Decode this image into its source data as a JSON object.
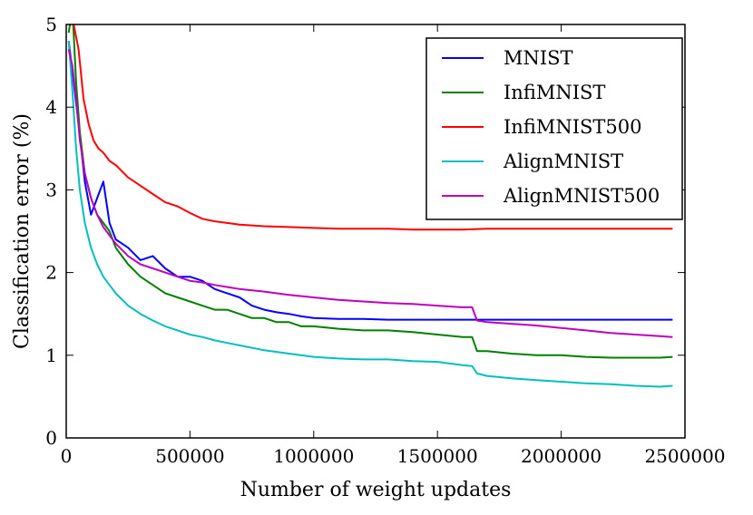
{
  "chart_data": {
    "type": "line",
    "title": "",
    "xlabel": "Number of weight updates",
    "ylabel": "Classification error (%)",
    "xlim": [
      0,
      2500000
    ],
    "ylim": [
      0,
      5
    ],
    "xticks": [
      0,
      500000,
      1000000,
      1500000,
      2000000,
      2500000
    ],
    "xtick_labels": [
      "0",
      "500000",
      "1000000",
      "1500000",
      "2000000",
      "2500000"
    ],
    "yticks": [
      0,
      1,
      2,
      3,
      4,
      5
    ],
    "ytick_labels": [
      "0",
      "1",
      "2",
      "3",
      "4",
      "5"
    ],
    "grid": false,
    "legend_position": "top-right",
    "series": [
      {
        "name": "MNIST",
        "color": "#0000ff",
        "x": [
          10000,
          30000,
          50000,
          75000,
          100000,
          125000,
          150000,
          175000,
          200000,
          250000,
          300000,
          350000,
          400000,
          450000,
          500000,
          550000,
          600000,
          650000,
          700000,
          750000,
          800000,
          850000,
          900000,
          950000,
          1000000,
          1100000,
          1200000,
          1300000,
          1400000,
          1500000,
          1600000,
          1700000,
          1800000,
          1900000,
          2000000,
          2100000,
          2200000,
          2300000,
          2400000,
          2450000
        ],
        "y": [
          4.8,
          4.3,
          3.8,
          3.1,
          2.7,
          2.9,
          3.1,
          2.6,
          2.4,
          2.3,
          2.15,
          2.2,
          2.05,
          1.95,
          1.95,
          1.9,
          1.8,
          1.75,
          1.7,
          1.6,
          1.55,
          1.52,
          1.5,
          1.47,
          1.45,
          1.44,
          1.44,
          1.43,
          1.43,
          1.43,
          1.43,
          1.43,
          1.43,
          1.43,
          1.43,
          1.43,
          1.43,
          1.43,
          1.43,
          1.43
        ]
      },
      {
        "name": "InfiMNIST",
        "color": "#008000",
        "x": [
          10000,
          25000,
          40000,
          55000,
          75000,
          100000,
          125000,
          150000,
          175000,
          200000,
          250000,
          300000,
          350000,
          400000,
          450000,
          500000,
          550000,
          600000,
          650000,
          700000,
          750000,
          800000,
          850000,
          900000,
          950000,
          1000000,
          1100000,
          1200000,
          1300000,
          1400000,
          1500000,
          1600000,
          1640000,
          1660000,
          1700000,
          1800000,
          1900000,
          2000000,
          2100000,
          2200000,
          2300000,
          2400000,
          2450000
        ],
        "y": [
          4.9,
          5.2,
          4.3,
          3.7,
          3.2,
          2.9,
          2.7,
          2.6,
          2.5,
          2.3,
          2.1,
          1.95,
          1.85,
          1.75,
          1.7,
          1.65,
          1.6,
          1.55,
          1.55,
          1.5,
          1.45,
          1.45,
          1.4,
          1.4,
          1.35,
          1.35,
          1.32,
          1.3,
          1.3,
          1.28,
          1.25,
          1.22,
          1.22,
          1.05,
          1.05,
          1.02,
          1.0,
          1.0,
          0.98,
          0.97,
          0.97,
          0.97,
          0.98
        ]
      },
      {
        "name": "InfiMNIST500",
        "color": "#ff0000",
        "x": [
          10000,
          30000,
          50000,
          70000,
          90000,
          110000,
          130000,
          150000,
          175000,
          200000,
          250000,
          300000,
          350000,
          400000,
          450000,
          500000,
          550000,
          600000,
          650000,
          700000,
          800000,
          900000,
          1000000,
          1100000,
          1200000,
          1300000,
          1400000,
          1500000,
          1600000,
          1700000,
          1800000,
          1900000,
          2000000,
          2100000,
          2200000,
          2300000,
          2400000,
          2450000
        ],
        "y": [
          5.1,
          5.0,
          4.7,
          4.1,
          3.8,
          3.6,
          3.5,
          3.45,
          3.35,
          3.3,
          3.15,
          3.05,
          2.95,
          2.85,
          2.8,
          2.72,
          2.65,
          2.62,
          2.6,
          2.58,
          2.56,
          2.55,
          2.54,
          2.53,
          2.53,
          2.53,
          2.52,
          2.52,
          2.52,
          2.53,
          2.53,
          2.53,
          2.53,
          2.53,
          2.53,
          2.53,
          2.53,
          2.53
        ]
      },
      {
        "name": "AlignMNIST",
        "color": "#00bfbf",
        "x": [
          10000,
          25000,
          40000,
          55000,
          75000,
          100000,
          125000,
          150000,
          175000,
          200000,
          250000,
          300000,
          350000,
          400000,
          450000,
          500000,
          550000,
          600000,
          700000,
          800000,
          900000,
          1000000,
          1100000,
          1200000,
          1300000,
          1400000,
          1500000,
          1600000,
          1640000,
          1660000,
          1700000,
          1800000,
          1900000,
          2000000,
          2100000,
          2200000,
          2300000,
          2400000,
          2450000
        ],
        "y": [
          4.8,
          4.2,
          3.5,
          3.0,
          2.6,
          2.3,
          2.1,
          1.95,
          1.85,
          1.75,
          1.6,
          1.5,
          1.42,
          1.35,
          1.3,
          1.25,
          1.22,
          1.18,
          1.12,
          1.06,
          1.02,
          0.98,
          0.96,
          0.95,
          0.95,
          0.93,
          0.92,
          0.88,
          0.87,
          0.78,
          0.75,
          0.72,
          0.7,
          0.68,
          0.66,
          0.65,
          0.63,
          0.62,
          0.63
        ]
      },
      {
        "name": "AlignMNIST500",
        "color": "#bf00bf",
        "x": [
          10000,
          25000,
          40000,
          55000,
          75000,
          100000,
          125000,
          150000,
          175000,
          200000,
          250000,
          300000,
          350000,
          400000,
          450000,
          500000,
          550000,
          600000,
          700000,
          800000,
          900000,
          1000000,
          1100000,
          1200000,
          1300000,
          1400000,
          1500000,
          1600000,
          1640000,
          1660000,
          1700000,
          1800000,
          1900000,
          2000000,
          2100000,
          2200000,
          2300000,
          2400000,
          2450000
        ],
        "y": [
          4.7,
          4.5,
          4.1,
          3.6,
          3.2,
          2.9,
          2.7,
          2.55,
          2.45,
          2.35,
          2.2,
          2.1,
          2.05,
          2.0,
          1.95,
          1.9,
          1.88,
          1.85,
          1.8,
          1.77,
          1.73,
          1.7,
          1.67,
          1.65,
          1.63,
          1.62,
          1.6,
          1.58,
          1.58,
          1.42,
          1.4,
          1.38,
          1.36,
          1.33,
          1.3,
          1.27,
          1.25,
          1.23,
          1.22
        ]
      }
    ]
  }
}
